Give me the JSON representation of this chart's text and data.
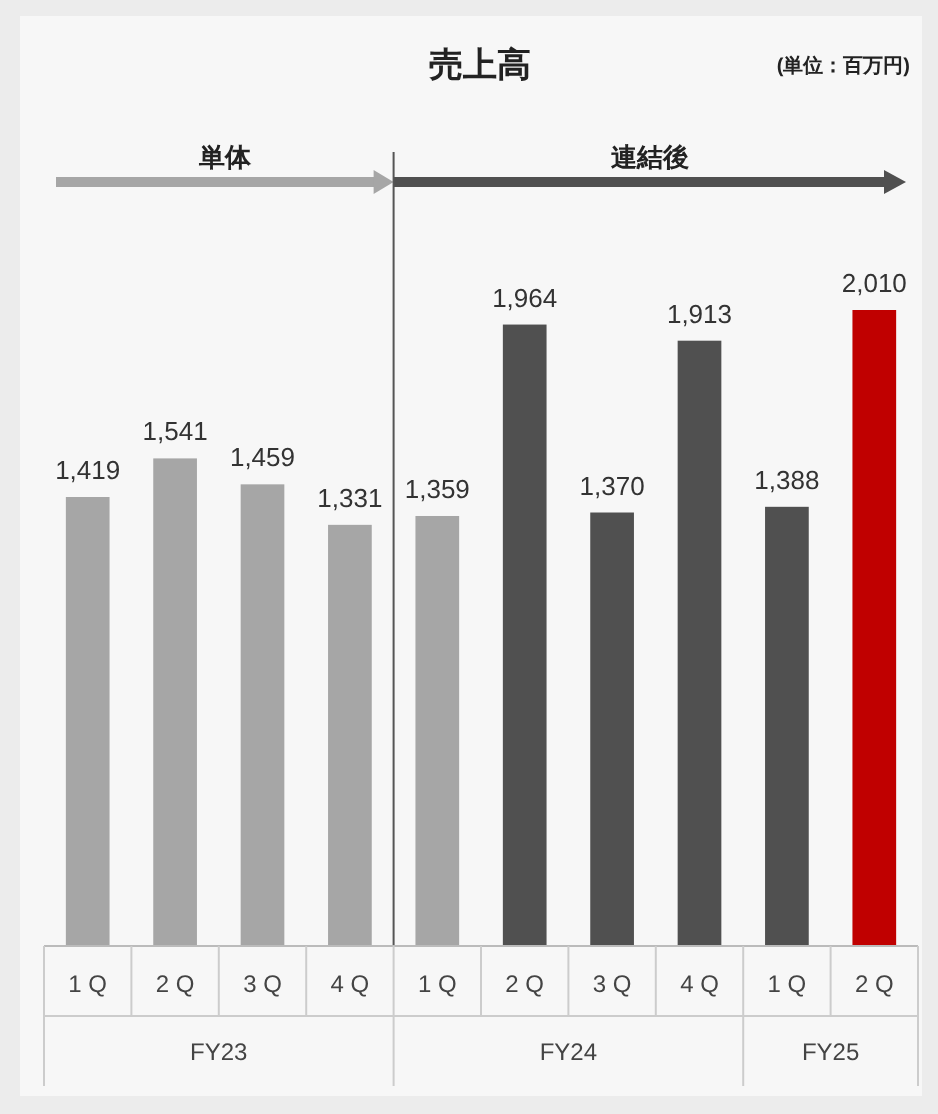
{
  "chart_data": {
    "type": "bar",
    "title": "売上高",
    "categories": [
      "1 Q",
      "2 Q",
      "3 Q",
      "4 Q",
      "1 Q",
      "2 Q",
      "3 Q",
      "4 Q",
      "1 Q",
      "2 Q"
    ],
    "values": [
      1419,
      1541,
      1459,
      1331,
      1359,
      1964,
      1370,
      1913,
      1388,
      2010
    ],
    "colors": [
      "#a6a6a6",
      "#a6a6a6",
      "#a6a6a6",
      "#a6a6a6",
      "#a6a6a6",
      "#505050",
      "#505050",
      "#505050",
      "#505050",
      "#c00000"
    ],
    "value_labels": [
      "1,419",
      "1,541",
      "1,459",
      "1,331",
      "1,359",
      "1,964",
      "1,370",
      "1,913",
      "1,388",
      "2,010"
    ],
    "annotations": [
      "(単位：百万円)",
      "単体",
      "連結後",
      "FY23",
      "FY24",
      "FY25"
    ]
  }
}
